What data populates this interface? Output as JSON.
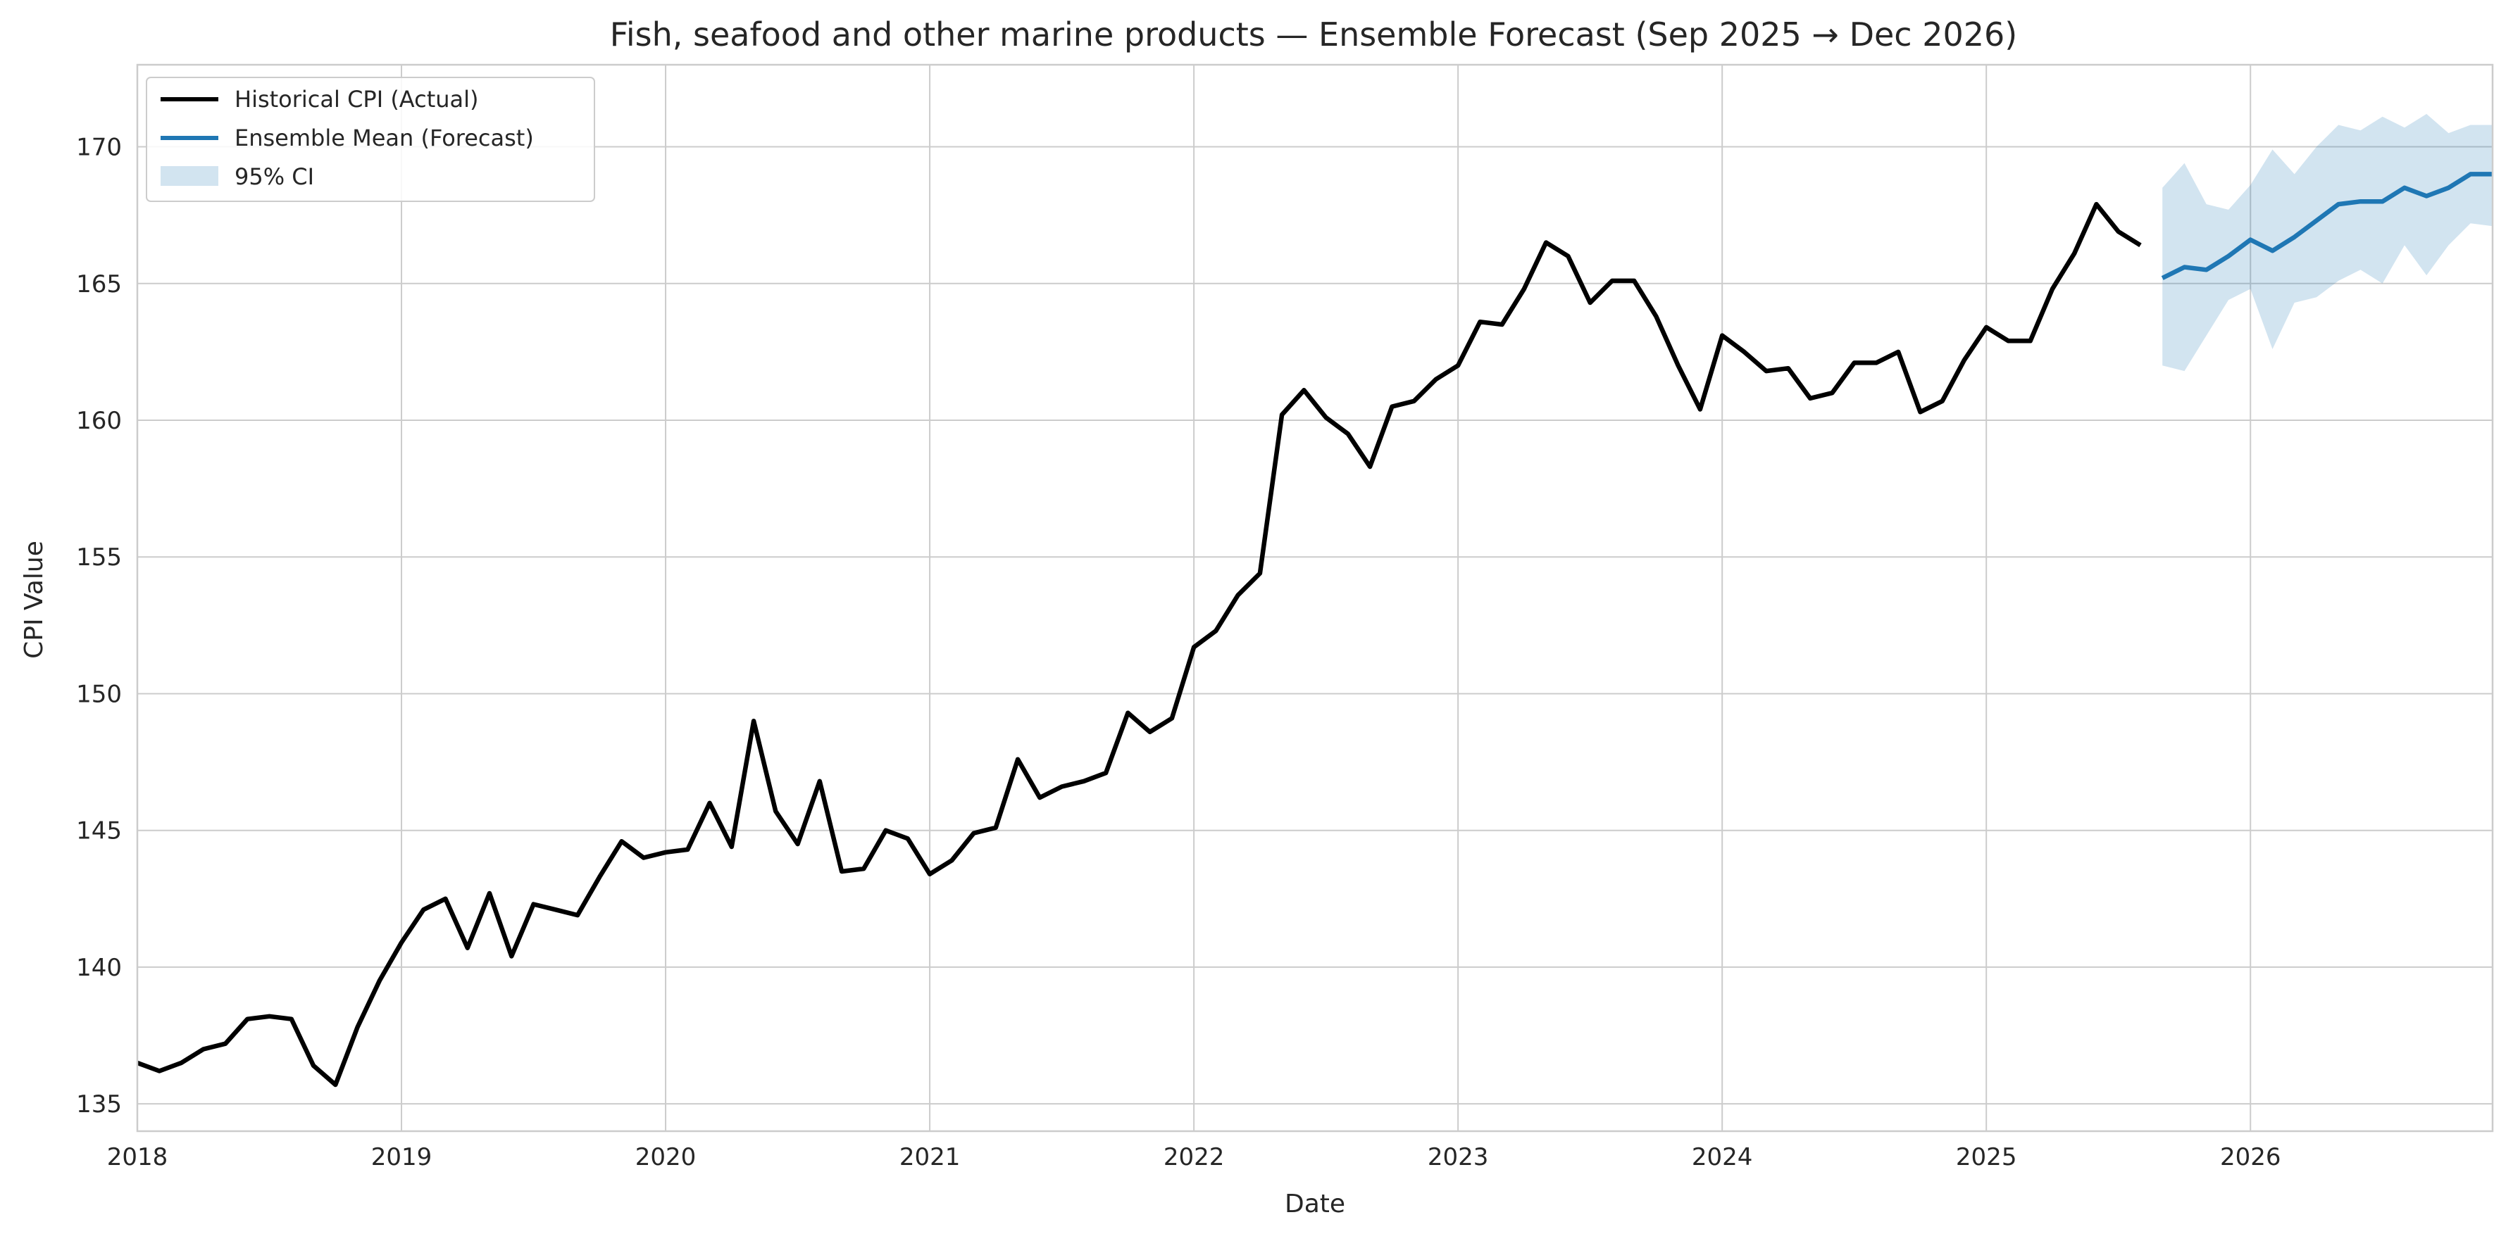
{
  "chart_data": {
    "type": "line",
    "title": "Fish, seafood and other marine products — Ensemble Forecast (Sep 2025 → Dec 2026)",
    "xlabel": "Date",
    "ylabel": "CPI Value",
    "xlim": [
      "2018-01",
      "2026-12"
    ],
    "ylim": [
      134,
      173
    ],
    "x_ticks": [
      "2018",
      "2019",
      "2020",
      "2021",
      "2022",
      "2023",
      "2024",
      "2025",
      "2026"
    ],
    "y_ticks": [
      135,
      140,
      145,
      150,
      155,
      160,
      165,
      170
    ],
    "grid": true,
    "legend_position": "top-left",
    "colors": {
      "historical": "#000000",
      "forecast": "#1f77b4",
      "ci": "#1f77b4"
    },
    "series": [
      {
        "name": "Historical CPI (Actual)",
        "x": [
          "2018-01",
          "2018-02",
          "2018-03",
          "2018-04",
          "2018-05",
          "2018-06",
          "2018-07",
          "2018-08",
          "2018-09",
          "2018-10",
          "2018-11",
          "2018-12",
          "2019-01",
          "2019-02",
          "2019-03",
          "2019-04",
          "2019-05",
          "2019-06",
          "2019-07",
          "2019-08",
          "2019-09",
          "2019-10",
          "2019-11",
          "2019-12",
          "2020-01",
          "2020-02",
          "2020-03",
          "2020-04",
          "2020-05",
          "2020-06",
          "2020-07",
          "2020-08",
          "2020-09",
          "2020-10",
          "2020-11",
          "2020-12",
          "2021-01",
          "2021-02",
          "2021-03",
          "2021-04",
          "2021-05",
          "2021-06",
          "2021-07",
          "2021-08",
          "2021-09",
          "2021-10",
          "2021-11",
          "2021-12",
          "2022-01",
          "2022-02",
          "2022-03",
          "2022-04",
          "2022-05",
          "2022-06",
          "2022-07",
          "2022-08",
          "2022-09",
          "2022-10",
          "2022-11",
          "2022-12",
          "2023-01",
          "2023-02",
          "2023-03",
          "2023-04",
          "2023-05",
          "2023-06",
          "2023-07",
          "2023-08",
          "2023-09",
          "2023-10",
          "2023-11",
          "2023-12",
          "2024-01",
          "2024-02",
          "2024-03",
          "2024-04",
          "2024-05",
          "2024-06",
          "2024-07",
          "2024-08",
          "2024-09",
          "2024-10",
          "2024-11",
          "2024-12",
          "2025-01",
          "2025-02",
          "2025-03",
          "2025-04",
          "2025-05",
          "2025-06",
          "2025-07",
          "2025-08"
        ],
        "values": [
          136.5,
          136.2,
          136.5,
          137.0,
          137.2,
          138.1,
          138.2,
          138.1,
          136.4,
          135.7,
          137.8,
          139.5,
          140.9,
          142.1,
          142.5,
          140.7,
          142.7,
          140.4,
          142.3,
          142.1,
          141.9,
          143.3,
          144.6,
          144.0,
          144.2,
          144.3,
          146.0,
          144.4,
          149.0,
          145.7,
          144.5,
          146.8,
          143.5,
          143.6,
          145.0,
          144.7,
          143.4,
          143.9,
          144.9,
          145.1,
          147.6,
          146.2,
          146.6,
          146.8,
          147.1,
          149.3,
          148.6,
          149.1,
          151.7,
          152.3,
          153.6,
          154.4,
          160.2,
          161.1,
          160.1,
          159.5,
          158.3,
          160.5,
          160.7,
          161.5,
          162.0,
          163.6,
          163.5,
          164.8,
          166.5,
          166.0,
          164.3,
          165.1,
          165.1,
          163.8,
          162.0,
          160.4,
          163.1,
          162.5,
          161.8,
          161.9,
          160.8,
          161.0,
          162.1,
          162.1,
          162.5,
          160.3,
          160.7,
          162.2,
          163.4,
          162.9,
          162.9,
          164.8,
          166.1,
          167.9,
          166.9,
          166.4
        ]
      },
      {
        "name": "Ensemble Mean (Forecast)",
        "x": [
          "2025-09",
          "2025-10",
          "2025-11",
          "2025-12",
          "2026-01",
          "2026-02",
          "2026-03",
          "2026-04",
          "2026-05",
          "2026-06",
          "2026-07",
          "2026-08",
          "2026-09",
          "2026-10",
          "2026-11",
          "2026-12"
        ],
        "values": [
          165.2,
          165.6,
          165.5,
          166.0,
          166.6,
          166.2,
          166.7,
          167.3,
          167.9,
          168.0,
          168.0,
          168.5,
          168.2,
          168.5,
          169.0,
          169.0
        ]
      },
      {
        "name": "95% CI",
        "x": [
          "2025-09",
          "2025-10",
          "2025-11",
          "2025-12",
          "2026-01",
          "2026-02",
          "2026-03",
          "2026-04",
          "2026-05",
          "2026-06",
          "2026-07",
          "2026-08",
          "2026-09",
          "2026-10",
          "2026-11",
          "2026-12"
        ],
        "lower": [
          162.0,
          161.8,
          163.1,
          164.4,
          164.8,
          162.6,
          164.3,
          164.5,
          165.1,
          165.5,
          165.0,
          166.4,
          165.3,
          166.4,
          167.2,
          167.1
        ],
        "upper": [
          168.5,
          169.4,
          167.9,
          167.7,
          168.6,
          169.9,
          169.0,
          170.0,
          170.8,
          170.6,
          171.1,
          170.7,
          171.2,
          170.5,
          170.8,
          170.8
        ]
      }
    ]
  }
}
